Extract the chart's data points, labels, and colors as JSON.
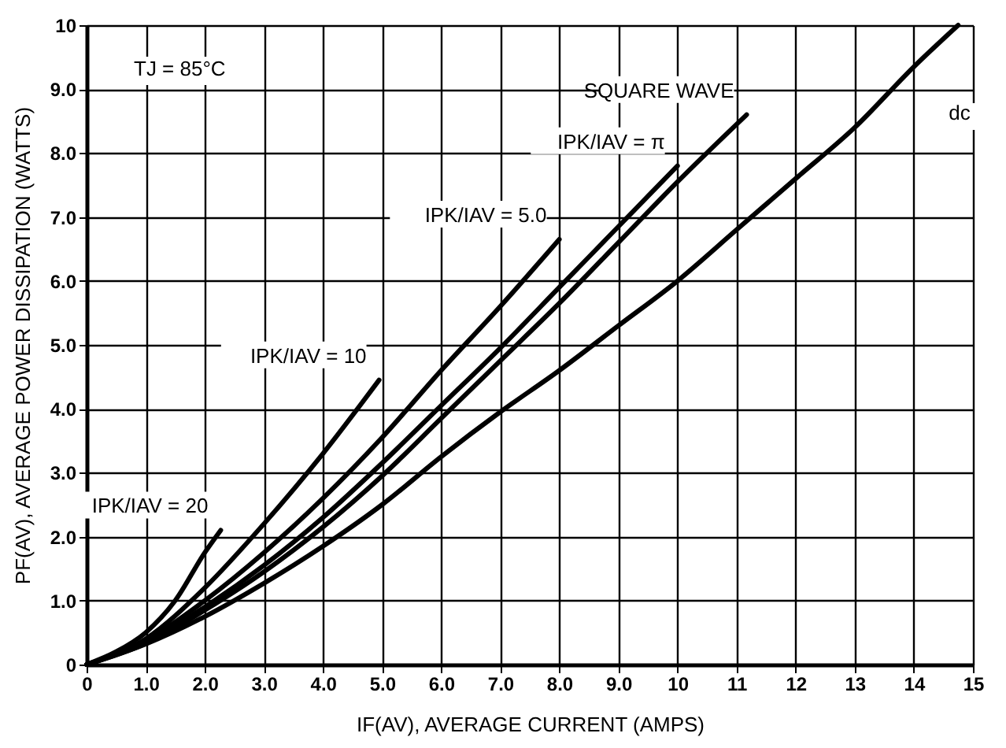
{
  "chart_data": {
    "type": "line",
    "xlabel": "IF(AV), AVERAGE CURRENT (AMPS)",
    "ylabel": "PF(AV), AVERAGE POWER DISSIPATION (WATTS)",
    "annotations": [
      "TJ = 85°C"
    ],
    "xlim": [
      0,
      15
    ],
    "ylim": [
      0,
      10
    ],
    "xticks": [
      0,
      {
        "value": 1,
        "label": "1.0"
      },
      {
        "value": 2,
        "label": "2.0"
      },
      {
        "value": 3,
        "label": "3.0"
      },
      {
        "value": 4,
        "label": "4.0"
      },
      {
        "value": 5,
        "label": "5.0"
      },
      {
        "value": 6,
        "label": "6.0"
      },
      {
        "value": 7,
        "label": "7.0"
      },
      {
        "value": 8,
        "label": "8.0"
      },
      {
        "value": 9,
        "label": "9.0"
      },
      10,
      11,
      12,
      13,
      14,
      15
    ],
    "yticks": [
      0,
      {
        "value": 1,
        "label": "1.0"
      },
      {
        "value": 2,
        "label": "2.0"
      },
      {
        "value": 3,
        "label": "3.0"
      },
      {
        "value": 4,
        "label": "4.0"
      },
      {
        "value": 5,
        "label": "5.0"
      },
      {
        "value": 6,
        "label": "6.0"
      },
      {
        "value": 7,
        "label": "7.0"
      },
      {
        "value": 8,
        "label": "8.0"
      },
      {
        "value": 9,
        "label": "9.0"
      },
      10
    ],
    "grid": true,
    "legend": false,
    "marker": "none",
    "line_style": "solid",
    "series": [
      {
        "name": "IPK/IAV = 20",
        "color": "#000000",
        "x": [
          0,
          0.5,
          1,
          1.5,
          2,
          2.27
        ],
        "values": [
          0,
          0.2,
          0.5,
          1.0,
          1.75,
          2.1
        ]
      },
      {
        "name": "IPK/IAV = 10",
        "color": "#000000",
        "x": [
          0,
          1,
          2,
          3,
          4,
          4.95
        ],
        "values": [
          0,
          0.4,
          1.2,
          2.2,
          3.3,
          4.45
        ]
      },
      {
        "name": "IPK/IAV = 5.0",
        "color": "#000000",
        "x": [
          0,
          1,
          2,
          3,
          4,
          5,
          6,
          7,
          8
        ],
        "values": [
          0,
          0.37,
          1.0,
          1.75,
          2.6,
          3.55,
          4.6,
          5.6,
          6.65
        ]
      },
      {
        "name": "IPK/IAV = π",
        "color": "#000000",
        "x": [
          0,
          1,
          2,
          3,
          4,
          5,
          6,
          7,
          8,
          9,
          10
        ],
        "values": [
          0,
          0.35,
          0.9,
          1.55,
          2.3,
          3.15,
          4.05,
          4.95,
          5.9,
          6.85,
          7.8
        ]
      },
      {
        "name": "SQUARE WAVE",
        "color": "#000000",
        "x": [
          0,
          1,
          2,
          3,
          4,
          5,
          6,
          7,
          8,
          9,
          10,
          11,
          11.17
        ],
        "values": [
          0,
          0.33,
          0.85,
          1.45,
          2.15,
          2.95,
          3.85,
          4.75,
          5.65,
          6.6,
          7.55,
          8.45,
          8.6
        ]
      },
      {
        "name": "dc",
        "color": "#000000",
        "x": [
          0,
          1,
          2,
          3,
          4,
          5,
          6,
          7,
          8,
          9,
          10,
          11,
          12,
          13,
          14,
          14.75
        ],
        "values": [
          0,
          0.32,
          0.75,
          1.27,
          1.85,
          2.5,
          3.25,
          3.95,
          4.6,
          5.3,
          6.0,
          6.8,
          7.6,
          8.4,
          9.35,
          10.0
        ]
      }
    ]
  }
}
